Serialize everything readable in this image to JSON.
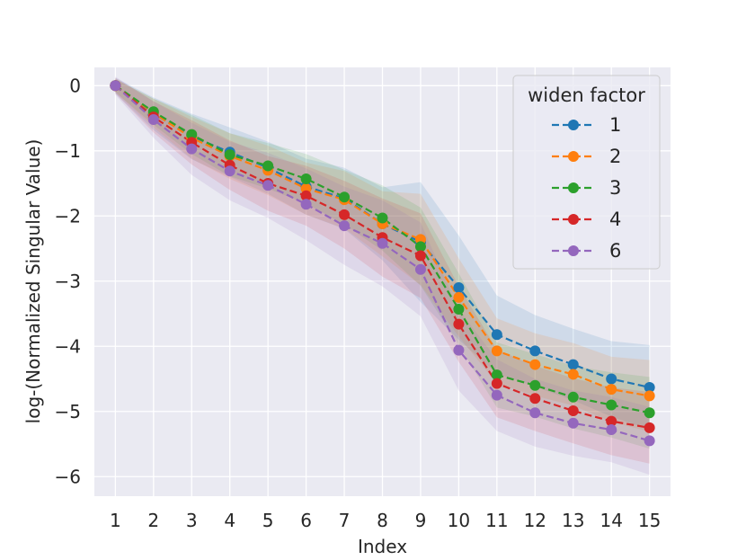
{
  "chart_data": {
    "type": "line",
    "title": "",
    "xlabel": "Index",
    "ylabel": "log-(Normalized Singular Value)",
    "x": [
      1,
      2,
      3,
      4,
      5,
      6,
      7,
      8,
      9,
      10,
      11,
      12,
      13,
      14,
      15
    ],
    "xticks": [
      "1",
      "2",
      "3",
      "4",
      "5",
      "6",
      "7",
      "8",
      "9",
      "10",
      "11",
      "12",
      "13",
      "14",
      "15"
    ],
    "xlim": [
      0.45,
      15.55
    ],
    "ylim": [
      -6.3,
      0.28
    ],
    "yticks": [
      0,
      -1,
      -2,
      -3,
      -4,
      -5,
      -6
    ],
    "ytick_labels": [
      "0",
      "−1",
      "−2",
      "−3",
      "−4",
      "−5",
      "−6"
    ],
    "grid": true,
    "legend": {
      "title": "widen factor",
      "position": "top-right"
    },
    "series": [
      {
        "name": "1",
        "color": "#1f77b4",
        "values": [
          0,
          -0.43,
          -0.78,
          -1.02,
          -1.26,
          -1.55,
          -1.73,
          -2.12,
          -2.4,
          -3.1,
          -3.82,
          -4.07,
          -4.28,
          -4.5,
          -4.63
        ],
        "band": [
          0.12,
          0.25,
          0.35,
          0.38,
          0.4,
          0.43,
          0.47,
          0.56,
          0.92,
          0.8,
          0.6,
          0.55,
          0.55,
          0.58,
          0.65
        ]
      },
      {
        "name": "2",
        "color": "#ff7f0e",
        "values": [
          0,
          -0.42,
          -0.8,
          -1.08,
          -1.3,
          -1.58,
          -1.75,
          -2.12,
          -2.36,
          -3.25,
          -4.07,
          -4.28,
          -4.43,
          -4.66,
          -4.76
        ],
        "band": [
          0.1,
          0.22,
          0.32,
          0.35,
          0.38,
          0.4,
          0.44,
          0.5,
          0.7,
          0.6,
          0.5,
          0.48,
          0.48,
          0.5,
          0.55
        ]
      },
      {
        "name": "3",
        "color": "#2ca02c",
        "values": [
          0,
          -0.4,
          -0.75,
          -1.06,
          -1.23,
          -1.43,
          -1.71,
          -2.03,
          -2.47,
          -3.43,
          -4.44,
          -4.6,
          -4.78,
          -4.9,
          -5.02
        ],
        "band": [
          0.1,
          0.2,
          0.3,
          0.33,
          0.35,
          0.38,
          0.42,
          0.5,
          0.6,
          0.55,
          0.5,
          0.48,
          0.48,
          0.5,
          0.55
        ]
      },
      {
        "name": "4",
        "color": "#d62728",
        "values": [
          0,
          -0.48,
          -0.87,
          -1.22,
          -1.5,
          -1.69,
          -1.98,
          -2.33,
          -2.61,
          -3.66,
          -4.57,
          -4.8,
          -4.99,
          -5.15,
          -5.25
        ],
        "band": [
          0.12,
          0.24,
          0.34,
          0.38,
          0.42,
          0.46,
          0.52,
          0.6,
          0.65,
          0.58,
          0.52,
          0.5,
          0.5,
          0.52,
          0.55
        ]
      },
      {
        "name": "6",
        "color": "#9467bd",
        "values": [
          0,
          -0.52,
          -0.97,
          -1.31,
          -1.53,
          -1.82,
          -2.15,
          -2.42,
          -2.82,
          -4.06,
          -4.75,
          -5.02,
          -5.18,
          -5.28,
          -5.45
        ],
        "band": [
          0.14,
          0.28,
          0.4,
          0.45,
          0.5,
          0.55,
          0.6,
          0.66,
          0.72,
          0.62,
          0.55,
          0.52,
          0.5,
          0.5,
          0.52
        ]
      }
    ]
  }
}
